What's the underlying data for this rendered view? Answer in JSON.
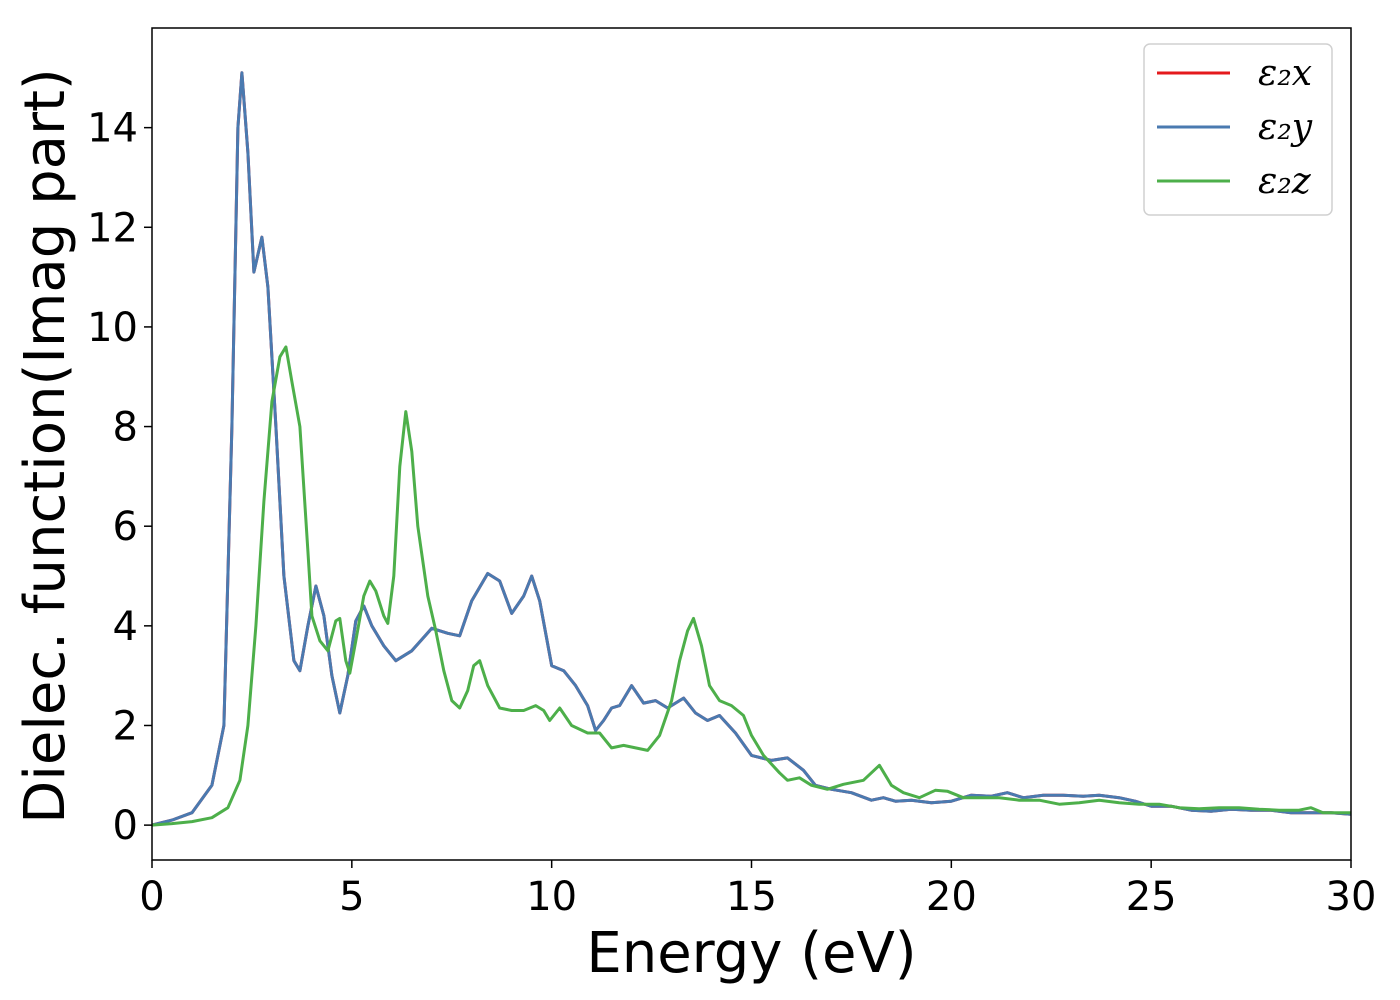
{
  "chart_data": {
    "type": "line",
    "title": "",
    "xlabel": "Energy (eV)",
    "ylabel": "Dielec. function(Imag part)",
    "xlim": [
      0,
      30
    ],
    "ylim": [
      -0.7,
      16
    ],
    "xticks": [
      0,
      5,
      10,
      15,
      20,
      25,
      30
    ],
    "yticks": [
      0,
      2,
      4,
      6,
      8,
      10,
      12,
      14
    ],
    "grid": false,
    "legend_position": "top-right",
    "series": [
      {
        "name": "ε₂x",
        "color": "#e41a1c",
        "points": [
          [
            0,
            0
          ],
          [
            0.5,
            0.1
          ],
          [
            1,
            0.25
          ],
          [
            1.5,
            0.8
          ],
          [
            1.8,
            2.0
          ],
          [
            2.0,
            8.0
          ],
          [
            2.15,
            14.0
          ],
          [
            2.25,
            15.1
          ],
          [
            2.4,
            13.5
          ],
          [
            2.55,
            11.1
          ],
          [
            2.75,
            11.8
          ],
          [
            2.9,
            10.8
          ],
          [
            3.1,
            8.0
          ],
          [
            3.3,
            5.0
          ],
          [
            3.55,
            3.3
          ],
          [
            3.7,
            3.1
          ],
          [
            3.9,
            4.0
          ],
          [
            4.1,
            4.8
          ],
          [
            4.3,
            4.2
          ],
          [
            4.5,
            3.0
          ],
          [
            4.7,
            2.25
          ],
          [
            4.9,
            3.0
          ],
          [
            5.1,
            4.1
          ],
          [
            5.3,
            4.4
          ],
          [
            5.5,
            4.0
          ],
          [
            5.8,
            3.6
          ],
          [
            6.1,
            3.3
          ],
          [
            6.5,
            3.5
          ],
          [
            7.0,
            3.95
          ],
          [
            7.4,
            3.85
          ],
          [
            7.7,
            3.8
          ],
          [
            8.0,
            4.5
          ],
          [
            8.4,
            5.05
          ],
          [
            8.7,
            4.9
          ],
          [
            9.0,
            4.25
          ],
          [
            9.3,
            4.6
          ],
          [
            9.5,
            5.0
          ],
          [
            9.7,
            4.5
          ],
          [
            10.0,
            3.2
          ],
          [
            10.3,
            3.1
          ],
          [
            10.6,
            2.8
          ],
          [
            10.9,
            2.4
          ],
          [
            11.1,
            1.9
          ],
          [
            11.3,
            2.1
          ],
          [
            11.5,
            2.35
          ],
          [
            11.7,
            2.4
          ],
          [
            12.0,
            2.8
          ],
          [
            12.3,
            2.45
          ],
          [
            12.6,
            2.5
          ],
          [
            12.9,
            2.35
          ],
          [
            13.3,
            2.55
          ],
          [
            13.6,
            2.25
          ],
          [
            13.9,
            2.1
          ],
          [
            14.2,
            2.2
          ],
          [
            14.6,
            1.85
          ],
          [
            15.0,
            1.4
          ],
          [
            15.5,
            1.3
          ],
          [
            15.9,
            1.35
          ],
          [
            16.3,
            1.1
          ],
          [
            16.6,
            0.8
          ],
          [
            17.0,
            0.72
          ],
          [
            17.5,
            0.65
          ],
          [
            18.0,
            0.5
          ],
          [
            18.3,
            0.55
          ],
          [
            18.6,
            0.48
          ],
          [
            19.0,
            0.5
          ],
          [
            19.5,
            0.45
          ],
          [
            20.0,
            0.48
          ],
          [
            20.5,
            0.6
          ],
          [
            21.0,
            0.58
          ],
          [
            21.4,
            0.65
          ],
          [
            21.8,
            0.55
          ],
          [
            22.3,
            0.6
          ],
          [
            22.8,
            0.6
          ],
          [
            23.3,
            0.58
          ],
          [
            23.7,
            0.6
          ],
          [
            24.2,
            0.55
          ],
          [
            24.6,
            0.48
          ],
          [
            25.0,
            0.38
          ],
          [
            25.5,
            0.38
          ],
          [
            26.0,
            0.3
          ],
          [
            26.5,
            0.28
          ],
          [
            27.0,
            0.32
          ],
          [
            27.5,
            0.3
          ],
          [
            28.0,
            0.3
          ],
          [
            28.5,
            0.25
          ],
          [
            29.0,
            0.25
          ],
          [
            29.5,
            0.25
          ],
          [
            30.0,
            0.22
          ]
        ]
      },
      {
        "name": "ε₂y",
        "color": "#4a7ab0",
        "points": [
          [
            0,
            0
          ],
          [
            0.5,
            0.1
          ],
          [
            1,
            0.25
          ],
          [
            1.5,
            0.8
          ],
          [
            1.8,
            2.0
          ],
          [
            2.0,
            8.0
          ],
          [
            2.15,
            14.0
          ],
          [
            2.25,
            15.1
          ],
          [
            2.4,
            13.5
          ],
          [
            2.55,
            11.1
          ],
          [
            2.75,
            11.8
          ],
          [
            2.9,
            10.8
          ],
          [
            3.1,
            8.0
          ],
          [
            3.3,
            5.0
          ],
          [
            3.55,
            3.3
          ],
          [
            3.7,
            3.1
          ],
          [
            3.9,
            4.0
          ],
          [
            4.1,
            4.8
          ],
          [
            4.3,
            4.2
          ],
          [
            4.5,
            3.0
          ],
          [
            4.7,
            2.25
          ],
          [
            4.9,
            3.0
          ],
          [
            5.1,
            4.1
          ],
          [
            5.3,
            4.4
          ],
          [
            5.5,
            4.0
          ],
          [
            5.8,
            3.6
          ],
          [
            6.1,
            3.3
          ],
          [
            6.5,
            3.5
          ],
          [
            7.0,
            3.95
          ],
          [
            7.4,
            3.85
          ],
          [
            7.7,
            3.8
          ],
          [
            8.0,
            4.5
          ],
          [
            8.4,
            5.05
          ],
          [
            8.7,
            4.9
          ],
          [
            9.0,
            4.25
          ],
          [
            9.3,
            4.6
          ],
          [
            9.5,
            5.0
          ],
          [
            9.7,
            4.5
          ],
          [
            10.0,
            3.2
          ],
          [
            10.3,
            3.1
          ],
          [
            10.6,
            2.8
          ],
          [
            10.9,
            2.4
          ],
          [
            11.1,
            1.9
          ],
          [
            11.3,
            2.1
          ],
          [
            11.5,
            2.35
          ],
          [
            11.7,
            2.4
          ],
          [
            12.0,
            2.8
          ],
          [
            12.3,
            2.45
          ],
          [
            12.6,
            2.5
          ],
          [
            12.9,
            2.35
          ],
          [
            13.3,
            2.55
          ],
          [
            13.6,
            2.25
          ],
          [
            13.9,
            2.1
          ],
          [
            14.2,
            2.2
          ],
          [
            14.6,
            1.85
          ],
          [
            15.0,
            1.4
          ],
          [
            15.5,
            1.3
          ],
          [
            15.9,
            1.35
          ],
          [
            16.3,
            1.1
          ],
          [
            16.6,
            0.8
          ],
          [
            17.0,
            0.72
          ],
          [
            17.5,
            0.65
          ],
          [
            18.0,
            0.5
          ],
          [
            18.3,
            0.55
          ],
          [
            18.6,
            0.48
          ],
          [
            19.0,
            0.5
          ],
          [
            19.5,
            0.45
          ],
          [
            20.0,
            0.48
          ],
          [
            20.5,
            0.6
          ],
          [
            21.0,
            0.58
          ],
          [
            21.4,
            0.65
          ],
          [
            21.8,
            0.55
          ],
          [
            22.3,
            0.6
          ],
          [
            22.8,
            0.6
          ],
          [
            23.3,
            0.58
          ],
          [
            23.7,
            0.6
          ],
          [
            24.2,
            0.55
          ],
          [
            24.6,
            0.48
          ],
          [
            25.0,
            0.38
          ],
          [
            25.5,
            0.38
          ],
          [
            26.0,
            0.3
          ],
          [
            26.5,
            0.28
          ],
          [
            27.0,
            0.32
          ],
          [
            27.5,
            0.3
          ],
          [
            28.0,
            0.3
          ],
          [
            28.5,
            0.25
          ],
          [
            29.0,
            0.25
          ],
          [
            29.5,
            0.25
          ],
          [
            30.0,
            0.22
          ]
        ]
      },
      {
        "name": "ε₂z",
        "color": "#4daf4a",
        "points": [
          [
            0,
            0
          ],
          [
            0.5,
            0.03
          ],
          [
            1,
            0.07
          ],
          [
            1.5,
            0.15
          ],
          [
            1.9,
            0.35
          ],
          [
            2.2,
            0.9
          ],
          [
            2.4,
            2.0
          ],
          [
            2.6,
            4.0
          ],
          [
            2.8,
            6.5
          ],
          [
            3.0,
            8.5
          ],
          [
            3.2,
            9.4
          ],
          [
            3.35,
            9.6
          ],
          [
            3.5,
            8.9
          ],
          [
            3.7,
            8.0
          ],
          [
            3.9,
            5.5
          ],
          [
            4.0,
            4.2
          ],
          [
            4.2,
            3.7
          ],
          [
            4.4,
            3.5
          ],
          [
            4.6,
            4.1
          ],
          [
            4.7,
            4.15
          ],
          [
            4.85,
            3.3
          ],
          [
            4.95,
            3.05
          ],
          [
            5.1,
            3.7
          ],
          [
            5.3,
            4.6
          ],
          [
            5.45,
            4.9
          ],
          [
            5.6,
            4.7
          ],
          [
            5.8,
            4.2
          ],
          [
            5.9,
            4.05
          ],
          [
            6.05,
            5.0
          ],
          [
            6.2,
            7.2
          ],
          [
            6.35,
            8.3
          ],
          [
            6.5,
            7.5
          ],
          [
            6.65,
            6.0
          ],
          [
            6.9,
            4.6
          ],
          [
            7.1,
            3.9
          ],
          [
            7.3,
            3.1
          ],
          [
            7.5,
            2.5
          ],
          [
            7.7,
            2.35
          ],
          [
            7.9,
            2.7
          ],
          [
            8.05,
            3.2
          ],
          [
            8.2,
            3.3
          ],
          [
            8.4,
            2.8
          ],
          [
            8.7,
            2.35
          ],
          [
            9.0,
            2.3
          ],
          [
            9.3,
            2.3
          ],
          [
            9.6,
            2.4
          ],
          [
            9.8,
            2.3
          ],
          [
            9.95,
            2.1
          ],
          [
            10.2,
            2.35
          ],
          [
            10.5,
            2.0
          ],
          [
            10.9,
            1.85
          ],
          [
            11.2,
            1.85
          ],
          [
            11.5,
            1.55
          ],
          [
            11.8,
            1.6
          ],
          [
            12.1,
            1.55
          ],
          [
            12.4,
            1.5
          ],
          [
            12.7,
            1.8
          ],
          [
            13.0,
            2.5
          ],
          [
            13.2,
            3.3
          ],
          [
            13.4,
            3.9
          ],
          [
            13.55,
            4.15
          ],
          [
            13.75,
            3.6
          ],
          [
            13.95,
            2.8
          ],
          [
            14.2,
            2.5
          ],
          [
            14.5,
            2.4
          ],
          [
            14.8,
            2.2
          ],
          [
            15.0,
            1.8
          ],
          [
            15.3,
            1.4
          ],
          [
            15.7,
            1.05
          ],
          [
            15.9,
            0.9
          ],
          [
            16.2,
            0.95
          ],
          [
            16.5,
            0.8
          ],
          [
            16.9,
            0.72
          ],
          [
            17.3,
            0.82
          ],
          [
            17.8,
            0.9
          ],
          [
            18.0,
            1.05
          ],
          [
            18.2,
            1.2
          ],
          [
            18.5,
            0.8
          ],
          [
            18.8,
            0.65
          ],
          [
            19.2,
            0.55
          ],
          [
            19.6,
            0.7
          ],
          [
            19.9,
            0.68
          ],
          [
            20.3,
            0.55
          ],
          [
            20.7,
            0.55
          ],
          [
            21.2,
            0.55
          ],
          [
            21.7,
            0.5
          ],
          [
            22.2,
            0.5
          ],
          [
            22.7,
            0.42
          ],
          [
            23.2,
            0.45
          ],
          [
            23.7,
            0.5
          ],
          [
            24.2,
            0.45
          ],
          [
            24.7,
            0.42
          ],
          [
            25.2,
            0.42
          ],
          [
            25.7,
            0.35
          ],
          [
            26.2,
            0.33
          ],
          [
            26.7,
            0.35
          ],
          [
            27.2,
            0.35
          ],
          [
            27.7,
            0.32
          ],
          [
            28.2,
            0.3
          ],
          [
            28.7,
            0.3
          ],
          [
            29.0,
            0.35
          ],
          [
            29.3,
            0.25
          ],
          [
            30.0,
            0.25
          ]
        ]
      }
    ]
  }
}
